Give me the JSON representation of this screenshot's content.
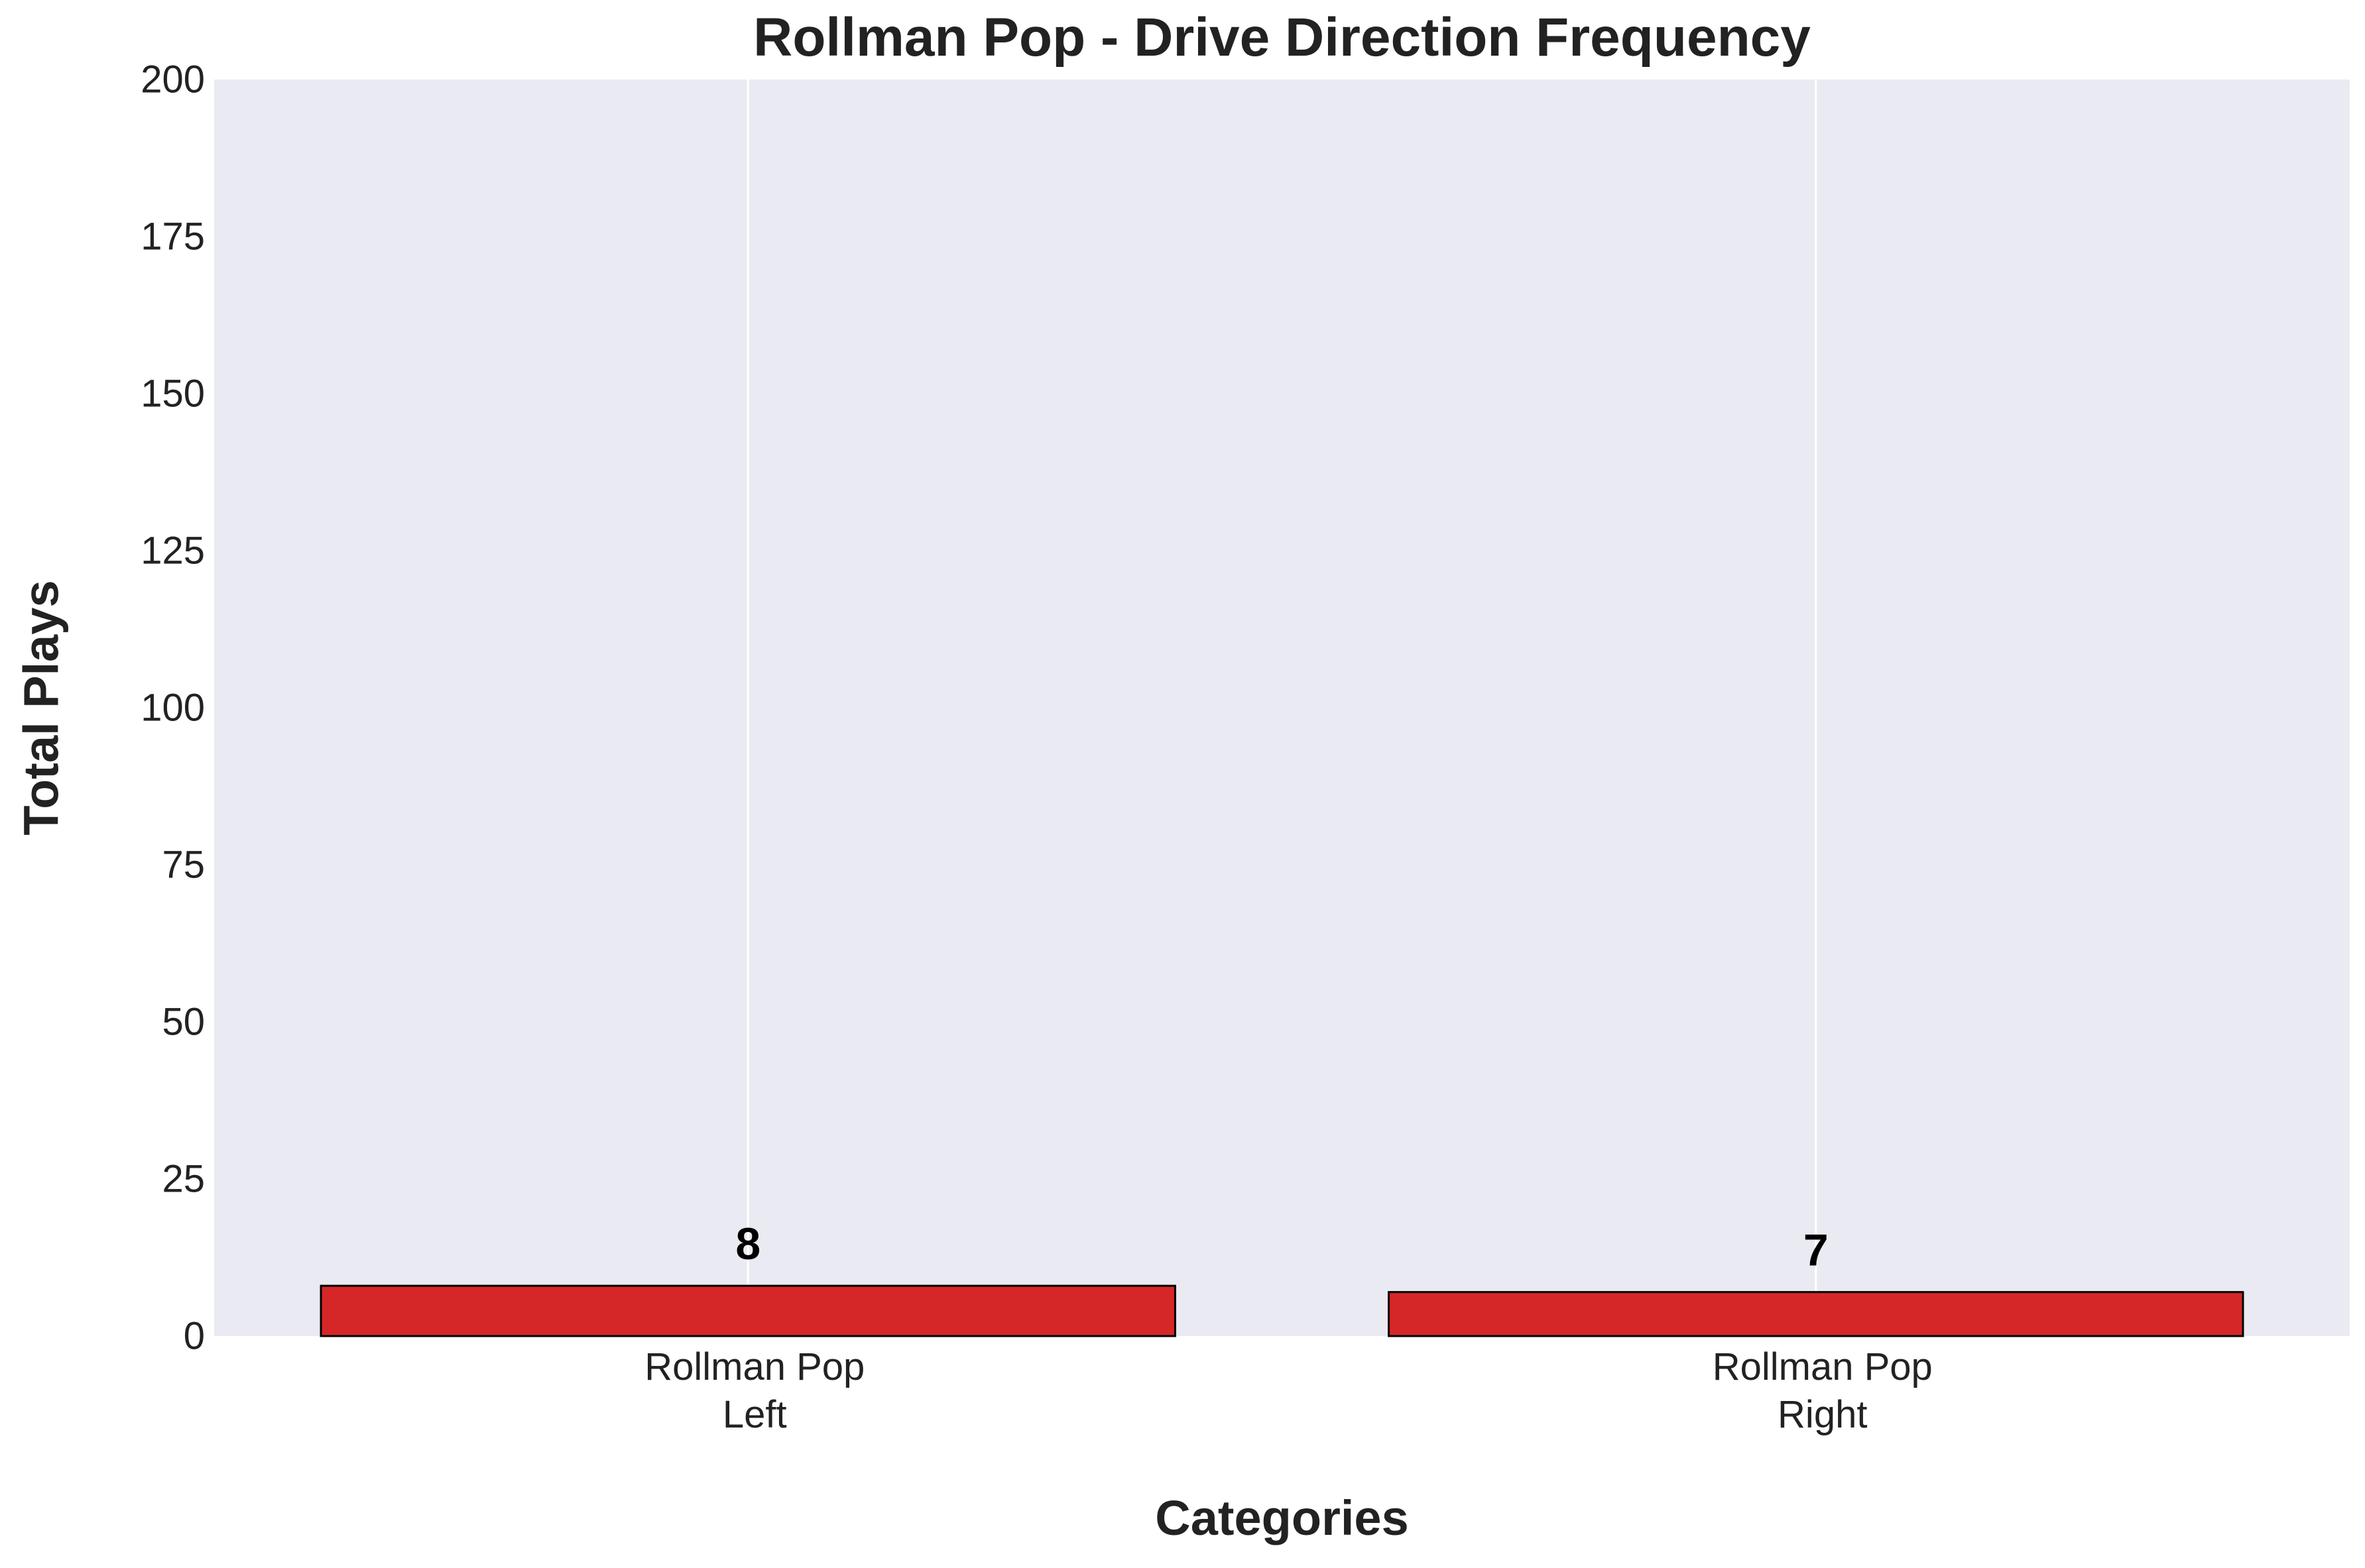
{
  "chart_data": {
    "type": "bar",
    "title": "Rollman Pop - Drive Direction Frequency",
    "xlabel": "Categories",
    "ylabel": "Total Plays",
    "categories": [
      [
        "Rollman Pop",
        "Left"
      ],
      [
        "Rollman Pop",
        "Right"
      ]
    ],
    "values": [
      8,
      7
    ],
    "data_labels": [
      "8",
      "7"
    ],
    "ylim": [
      0,
      200
    ],
    "yticks": [
      0,
      25,
      50,
      75,
      100,
      125,
      150,
      175,
      200
    ],
    "grid": "vertical lines at category centers",
    "colors": {
      "bar_fill": "#d62728",
      "bar_edge": "#000000",
      "plot_background": "#eaeaf2",
      "grid": "#ffffff",
      "text": "#222222"
    }
  }
}
